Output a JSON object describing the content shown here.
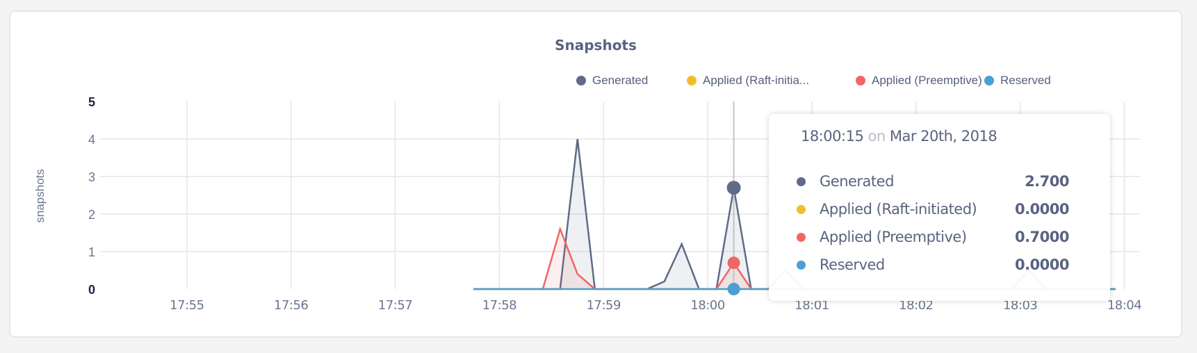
{
  "chart_data": {
    "type": "area",
    "title": "Snapshots",
    "ylabel": "snapshots",
    "xlabel": "",
    "ylim": [
      0,
      5
    ],
    "xlim": [
      "17:54:10",
      "18:04:09"
    ],
    "yticks": [
      "0",
      "1",
      "2",
      "3",
      "4",
      "5"
    ],
    "xticks": [
      "17:55",
      "17:56",
      "17:57",
      "17:58",
      "17:59",
      "18:00",
      "18:01",
      "18:02",
      "18:03",
      "18:04"
    ],
    "grid": true,
    "legend_position": "top-right",
    "x": [
      "17:57:45",
      "17:57:55",
      "17:58:05",
      "17:58:15",
      "17:58:25",
      "17:58:35",
      "17:58:45",
      "17:58:55",
      "17:59:05",
      "17:59:15",
      "17:59:25",
      "17:59:35",
      "17:59:45",
      "17:59:55",
      "18:00:05",
      "18:00:15",
      "18:00:25",
      "18:00:35",
      "18:00:45",
      "18:00:55",
      "18:01:05",
      "18:01:15",
      "18:01:25",
      "18:01:35",
      "18:01:45",
      "18:01:55",
      "18:02:05",
      "18:02:15",
      "18:02:25",
      "18:02:35",
      "18:02:45",
      "18:02:55",
      "18:03:05",
      "18:03:15",
      "18:03:25",
      "18:03:35",
      "18:03:45",
      "18:03:55"
    ],
    "series": [
      {
        "name": "Generated",
        "legend_label": "Generated",
        "color": "#5f6b87",
        "values": [
          0,
          0,
          0,
          0,
          0,
          0,
          4,
          0,
          0,
          0,
          0,
          0.2,
          1.2,
          0,
          0,
          2.7,
          0,
          0,
          0.5,
          0,
          0,
          0,
          0,
          0,
          0,
          0,
          0,
          0,
          0,
          0,
          0,
          0,
          0.5,
          0,
          0,
          0,
          0,
          0
        ]
      },
      {
        "name": "Applied (Raft-initiated)",
        "legend_label": "Applied (Raft-initia...",
        "color": "#f2bd2a",
        "values": [
          0,
          0,
          0,
          0,
          0,
          0,
          0,
          0,
          0,
          0,
          0,
          0,
          0,
          0,
          0,
          0,
          0,
          0,
          0,
          0,
          0,
          0,
          0,
          0,
          0,
          0,
          0,
          0,
          0,
          0,
          0,
          0,
          0,
          0,
          0,
          0,
          0,
          0
        ]
      },
      {
        "name": "Applied (Preemptive)",
        "legend_label": "Applied (Preemptive)",
        "color": "#f06666",
        "values": [
          0,
          0,
          0,
          0,
          0,
          1.6,
          0.4,
          0,
          0,
          0,
          0,
          0,
          0,
          0,
          0,
          0.7,
          0,
          0,
          0,
          0,
          0,
          0,
          0,
          0,
          0,
          0,
          0,
          0,
          0,
          0,
          0,
          0,
          0,
          0,
          0,
          0,
          0,
          0
        ]
      },
      {
        "name": "Reserved",
        "legend_label": "Reserved",
        "color": "#4a9fd4",
        "values": [
          0,
          0,
          0,
          0,
          0,
          0,
          0,
          0,
          0,
          0,
          0,
          0,
          0,
          0,
          0,
          0,
          0,
          0,
          0,
          0,
          0,
          0,
          0,
          0,
          0,
          0,
          0,
          0,
          0,
          0,
          0,
          0,
          0,
          0,
          0,
          0,
          0,
          0
        ]
      }
    ]
  },
  "tooltip": {
    "time": "18:00:15",
    "on": "on",
    "date": "Mar 20th, 2018",
    "hover_x": "18:00:15",
    "rows": [
      {
        "label": "Generated",
        "value": "2.700",
        "color": "#5f6b87"
      },
      {
        "label": "Applied (Raft-initiated)",
        "value": "0.0000",
        "color": "#f2bd2a"
      },
      {
        "label": "Applied (Preemptive)",
        "value": "0.7000",
        "color": "#f06666"
      },
      {
        "label": "Reserved",
        "value": "0.0000",
        "color": "#4a9fd4"
      }
    ]
  }
}
